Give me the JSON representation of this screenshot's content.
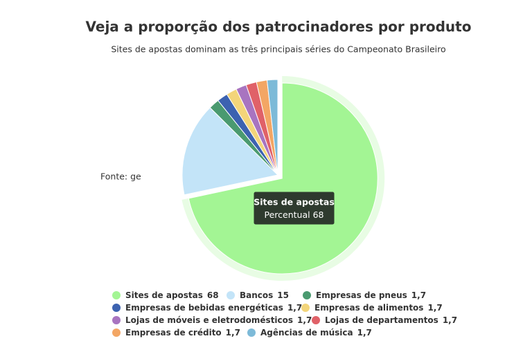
{
  "chart_data": {
    "type": "pie",
    "title": "Veja a proporção dos patrocinadores por produto",
    "subtitle": "Sites de apostas dominam as três principais séries do Campeonato Brasileiro",
    "source": "Fonte: ge",
    "categories": [
      "Sites de apostas",
      "Bancos",
      "Empresas de pneus",
      "Empresas de bebidas energéticas",
      "Empresas de alimentos",
      "Lojas de móveis e eletrodomésticos",
      "Lojas de departamentos",
      "Empresas de crédito",
      "Agências de música"
    ],
    "values": [
      68,
      15,
      1.7,
      1.7,
      1.7,
      1.7,
      1.7,
      1.7,
      1.7
    ],
    "value_labels": [
      "68",
      "15",
      "1,7",
      "1,7",
      "1,7",
      "1,7",
      "1,7",
      "1,7",
      "1,7"
    ],
    "colors": [
      "#a3f594",
      "#c3e4f8",
      "#4a9a70",
      "#3c62b0",
      "#f3d57a",
      "#a874c0",
      "#e06168",
      "#f3a664",
      "#7dbad8"
    ],
    "tooltip": {
      "title": "Sites de apostas",
      "label": "Percentual",
      "value": 68
    }
  }
}
